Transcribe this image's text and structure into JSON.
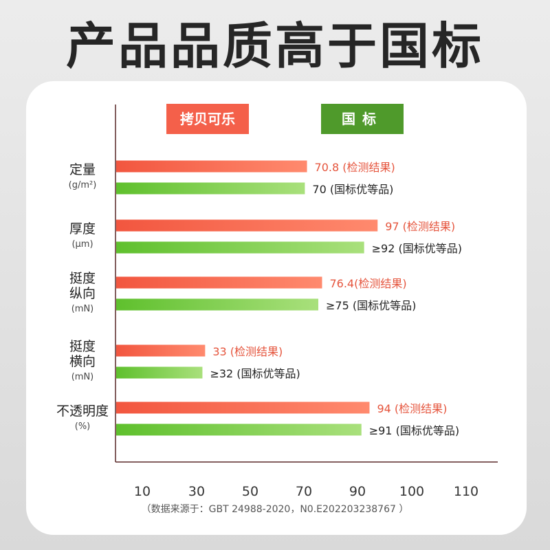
{
  "title": "产品品质高于国标",
  "legend": {
    "test": "拷贝可乐",
    "standard": "国标"
  },
  "colors": {
    "test_start": "#f2563f",
    "test_end": "#ff8a6e",
    "std_start": "#5fc02d",
    "std_end": "#a9e07c",
    "test_text": "#e5543c",
    "std_text": "#222222"
  },
  "footer": "（数据来源于：GBT 24988-2020，N0.E202203238767   ）",
  "chart_data": {
    "type": "bar",
    "orientation": "horizontal",
    "x_ticks": [
      "10",
      "30",
      "50",
      "70",
      "90",
      "100",
      "110"
    ],
    "categories": [
      {
        "lines": [
          "定量"
        ],
        "unit": "(g/m²)"
      },
      {
        "lines": [
          "厚度"
        ],
        "unit": "(μm)"
      },
      {
        "lines": [
          "挺度",
          "纵向"
        ],
        "unit": "(mN)"
      },
      {
        "lines": [
          "挺度",
          "横向"
        ],
        "unit": "(mN)"
      },
      {
        "lines": [
          "不透明度"
        ],
        "unit": "(%)"
      }
    ],
    "series": [
      {
        "name": "拷贝可乐",
        "values": [
          70.8,
          97,
          76.4,
          33,
          94
        ],
        "labels": [
          "70.8 (检测结果)",
          "97 (检测结果)",
          "76.4(检测结果)",
          "33 (检测结果)",
          "94  (检测结果)"
        ]
      },
      {
        "name": "国标",
        "values": [
          70,
          92,
          75,
          32,
          91
        ],
        "labels": [
          "70 (国标优等品)",
          "≥92 (国标优等品)",
          "≥75 (国标优等品)",
          "≥32 (国标优等品)",
          "≥91 (国标优等品)"
        ]
      }
    ]
  }
}
